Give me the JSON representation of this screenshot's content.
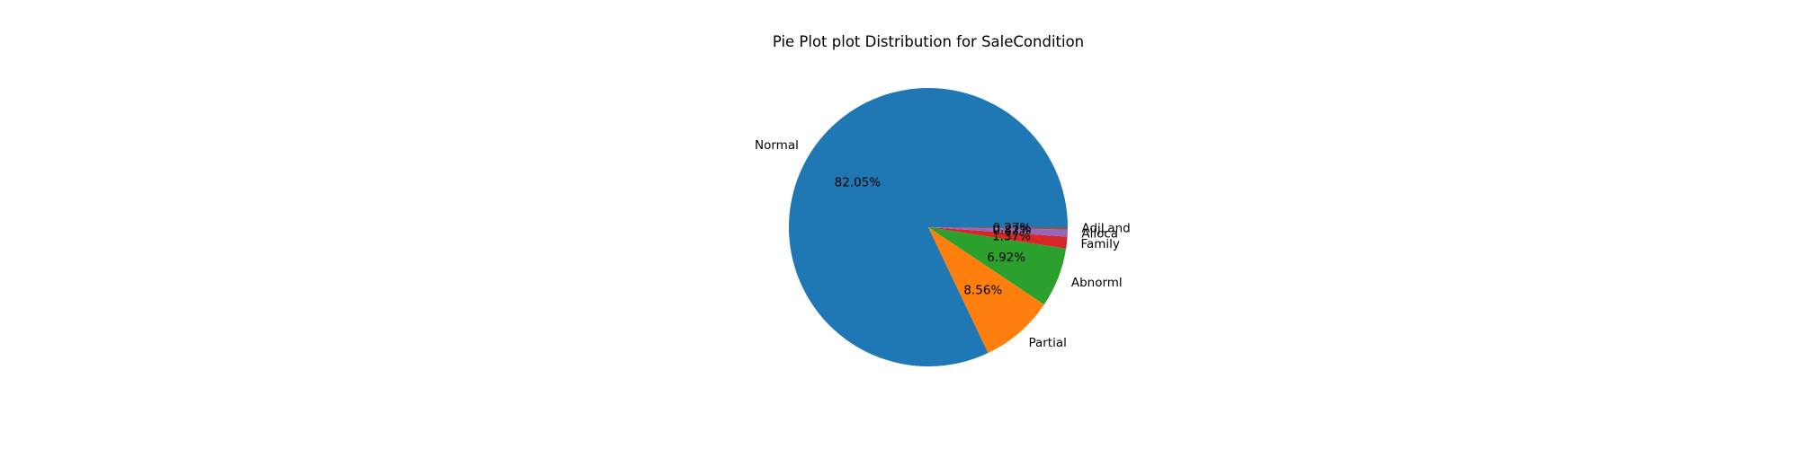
{
  "chart_data": {
    "type": "pie",
    "title": "Pie Plot plot Distribution for SaleCondition",
    "start_angle_deg": 0,
    "direction": "counterclockwise",
    "slices": [
      {
        "label": "Normal",
        "value": 82.05,
        "pct_label": "82.05%",
        "color": "#1f77b4"
      },
      {
        "label": "Partial",
        "value": 8.56,
        "pct_label": "8.56%",
        "color": "#ff7f0e"
      },
      {
        "label": "Abnorml",
        "value": 6.92,
        "pct_label": "6.92%",
        "color": "#2ca02c"
      },
      {
        "label": "Family",
        "value": 1.37,
        "pct_label": "1.37%",
        "color": "#d62728"
      },
      {
        "label": "Alloca",
        "value": 0.82,
        "pct_label": "0.82%",
        "color": "#9467bd"
      },
      {
        "label": "AdjLand",
        "value": 0.27,
        "pct_label": "0.27%",
        "color": "#8c564b"
      }
    ]
  }
}
